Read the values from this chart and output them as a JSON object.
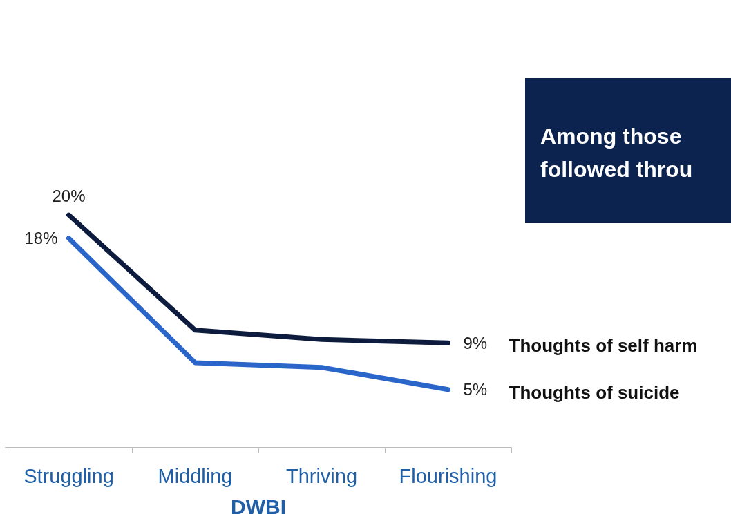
{
  "chart_data": {
    "type": "line",
    "xlabel": "DWBI",
    "categories": [
      "Struggling",
      "Middling",
      "Thriving",
      "Flourishing"
    ],
    "series": [
      {
        "name": "Thoughts of self harm",
        "color": "#0d1b3e",
        "values": [
          20,
          10.1,
          9.3,
          9
        ],
        "value_labels": [
          "20%",
          null,
          null,
          "9%"
        ]
      },
      {
        "name": "Thoughts of suicide",
        "color": "#2a66c9",
        "values": [
          18,
          7.3,
          6.9,
          5
        ],
        "value_labels": [
          "18%",
          null,
          null,
          "5%"
        ]
      }
    ],
    "annotations": [
      "Among those\nfollowed throu"
    ],
    "marker": "none",
    "grid": false,
    "legend": false
  }
}
